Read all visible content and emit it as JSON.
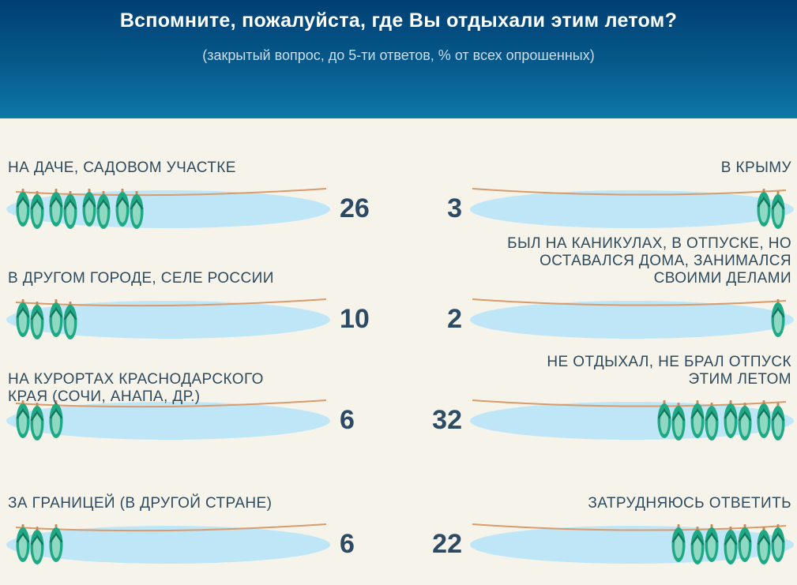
{
  "header": {
    "title": "Вспомните, пожалуйста, где Вы отдыхали этим летом?",
    "subtitle": "(закрытый вопрос, до 5-ти ответов, % от всех опрошенных)"
  },
  "colors": {
    "header_top": "#003f73",
    "background": "#f6f4ea",
    "puddle": "#bfe6f6",
    "rope": "#d99a6c",
    "flipflop": "#1ea883",
    "text": "#2d4a5e"
  },
  "chart_data": {
    "type": "bar",
    "unit": "%",
    "categories": [
      "НА ДАЧЕ, САДОВОМ УЧАСТКЕ",
      "В ДРУГОМ ГОРОДЕ, СЕЛЕ РОССИИ",
      "НА КУРОРТАХ КРАСНОДАРСКОГО КРАЯ (СОЧИ, АНАПА, ДР.)",
      "ЗА ГРАНИЦЕЙ (В ДРУГОЙ СТРАНЕ)",
      "В КРЫМУ",
      "БЫЛ НА КАНИКУЛАХ, В ОТПУСКЕ, НО ОСТАВАЛСЯ ДОМА, ЗАНИМАЛСЯ СВОИМИ ДЕЛАМИ",
      "НЕ ОТДЫХАЛ, НЕ БРАЛ ОТПУСК ЭТИМ ЛЕТОМ",
      "ЗАТРУДНЯЮСЬ ОТВЕТИТЬ"
    ],
    "values": [
      26,
      10,
      6,
      6,
      3,
      2,
      32,
      22
    ],
    "items": [
      {
        "label_lines": [
          "НА ДАЧЕ, САДОВОМ УЧАСТКЕ"
        ],
        "value": 26,
        "value_text": "26",
        "side": "left"
      },
      {
        "label_lines": [
          "В ДРУГОМ ГОРОДЕ, СЕЛЕ РОССИИ"
        ],
        "value": 10,
        "value_text": "10",
        "side": "left"
      },
      {
        "label_lines": [
          "НА КУРОРТАХ КРАСНОДАРСКОГО",
          "КРАЯ (СОЧИ, АНАПА, ДР.)"
        ],
        "value": 6,
        "value_text": "6",
        "side": "left"
      },
      {
        "label_lines": [
          "ЗА ГРАНИЦЕЙ (В ДРУГОЙ СТРАНЕ)"
        ],
        "value": 6,
        "value_text": "6",
        "side": "left"
      },
      {
        "label_lines": [
          "В КРЫМУ"
        ],
        "value": 3,
        "value_text": "3",
        "side": "right"
      },
      {
        "label_lines": [
          "БЫЛ НА КАНИКУЛАХ, В ОТПУСКЕ, НО",
          "ОСТАВАЛСЯ ДОМА, ЗАНИМАЛСЯ",
          "СВОИМИ ДЕЛАМИ"
        ],
        "value": 2,
        "value_text": "2",
        "side": "right"
      },
      {
        "label_lines": [
          "НЕ ОТДЫХАЛ, НЕ БРАЛ ОТПУСК",
          "ЭТИМ ЛЕТОМ"
        ],
        "value": 32,
        "value_text": "32",
        "side": "right"
      },
      {
        "label_lines": [
          "ЗАТРУДНЯЮСЬ ОТВЕТИТЬ"
        ],
        "value": 22,
        "value_text": "22",
        "side": "right"
      }
    ],
    "pictogram_counts": [
      8,
      4,
      3,
      3,
      2,
      1,
      8,
      7
    ]
  }
}
